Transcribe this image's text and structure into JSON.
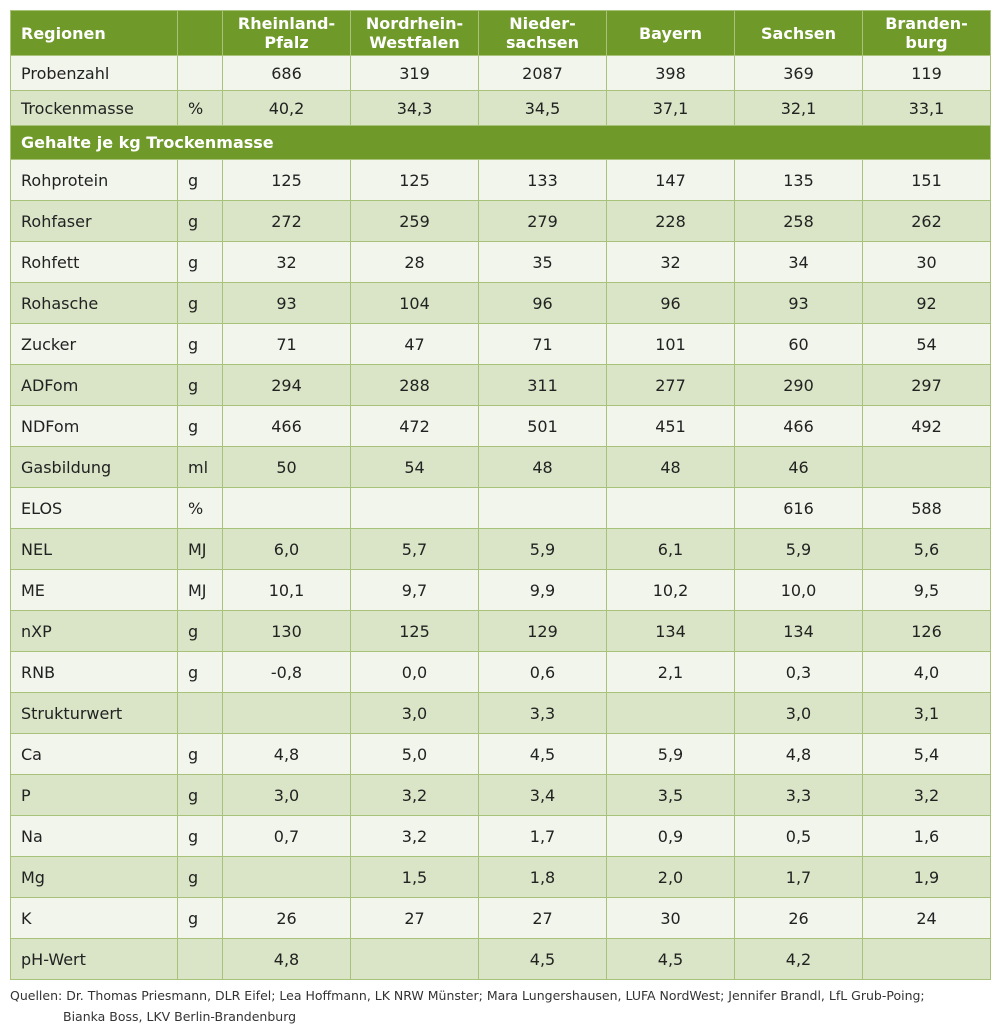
{
  "header": {
    "label": "Regionen",
    "unit": "",
    "regions": [
      "Rheinland-\nPfalz",
      "Nordrhein-\nWestfalen",
      "Nieder-\nsachsen",
      "Bayern",
      "Sachsen",
      "Branden-\nburg"
    ]
  },
  "top_rows": [
    {
      "label": "Probenzahl",
      "unit": "",
      "values": [
        "686",
        "319",
        "2087",
        "398",
        "369",
        "119"
      ]
    },
    {
      "label": "Trockenmasse",
      "unit": "%",
      "values": [
        "40,2",
        "34,3",
        "34,5",
        "37,1",
        "32,1",
        "33,1"
      ]
    }
  ],
  "section_title": "Gehalte je kg Trockenmasse",
  "rows": [
    {
      "label": "Rohprotein",
      "unit": "g",
      "values": [
        "125",
        "125",
        "133",
        "147",
        "135",
        "151"
      ]
    },
    {
      "label": "Rohfaser",
      "unit": "g",
      "values": [
        "272",
        "259",
        "279",
        "228",
        "258",
        "262"
      ]
    },
    {
      "label": "Rohfett",
      "unit": "g",
      "values": [
        "32",
        "28",
        "35",
        "32",
        "34",
        "30"
      ]
    },
    {
      "label": "Rohasche",
      "unit": "g",
      "values": [
        "93",
        "104",
        "96",
        "96",
        "93",
        "92"
      ]
    },
    {
      "label": "Zucker",
      "unit": "g",
      "values": [
        "71",
        "47",
        "71",
        "101",
        "60",
        "54"
      ]
    },
    {
      "label": "ADFom",
      "unit": "g",
      "values": [
        "294",
        "288",
        "311",
        "277",
        "290",
        "297"
      ]
    },
    {
      "label": "NDFom",
      "unit": "g",
      "values": [
        "466",
        "472",
        "501",
        "451",
        "466",
        "492"
      ]
    },
    {
      "label": "Gasbildung",
      "unit": "ml",
      "values": [
        "50",
        "54",
        "48",
        "48",
        "46",
        ""
      ]
    },
    {
      "label": "ELOS",
      "unit": "%",
      "values": [
        "",
        "",
        "",
        "",
        "616",
        "588"
      ]
    },
    {
      "label": "NEL",
      "unit": "MJ",
      "values": [
        "6,0",
        "5,7",
        "5,9",
        "6,1",
        "5,9",
        "5,6"
      ]
    },
    {
      "label": "ME",
      "unit": "MJ",
      "values": [
        "10,1",
        "9,7",
        "9,9",
        "10,2",
        "10,0",
        "9,5"
      ]
    },
    {
      "label": "nXP",
      "unit": "g",
      "values": [
        "130",
        "125",
        "129",
        "134",
        "134",
        "126"
      ]
    },
    {
      "label": "RNB",
      "unit": "g",
      "values": [
        "-0,8",
        "0,0",
        "0,6",
        "2,1",
        "0,3",
        "4,0"
      ]
    },
    {
      "label": "Strukturwert",
      "unit": "",
      "values": [
        "",
        "3,0",
        "3,3",
        "",
        "3,0",
        "3,1"
      ]
    },
    {
      "label": "Ca",
      "unit": "g",
      "values": [
        "4,8",
        "5,0",
        "4,5",
        "5,9",
        "4,8",
        "5,4"
      ]
    },
    {
      "label": "P",
      "unit": "g",
      "values": [
        "3,0",
        "3,2",
        "3,4",
        "3,5",
        "3,3",
        "3,2"
      ]
    },
    {
      "label": "Na",
      "unit": "g",
      "values": [
        "0,7",
        "3,2",
        "1,7",
        "0,9",
        "0,5",
        "1,6"
      ]
    },
    {
      "label": "Mg",
      "unit": "g",
      "values": [
        "",
        "1,5",
        "1,8",
        "2,0",
        "1,7",
        "1,9"
      ]
    },
    {
      "label": "K",
      "unit": "g",
      "values": [
        "26",
        "27",
        "27",
        "30",
        "26",
        "24"
      ]
    },
    {
      "label": "pH-Wert",
      "unit": "",
      "values": [
        "4,8",
        "",
        "4,5",
        "4,5",
        "4,2",
        ""
      ]
    }
  ],
  "footer": {
    "line1": "Quellen: Dr. Thomas Priesmann, DLR Eifel; Lea Hoffmann, LK NRW Münster; Mara Lungershausen, LUFA NordWest; Jennifer Brandl, LfL Grub-Poing;",
    "line2": "Bianka Boss, LKV Berlin-Brandenburg"
  },
  "colors": {
    "header_green": "#6f9a2a",
    "row_light": "#f2f5ec",
    "row_dark": "#d9e5c6",
    "grid": "#a9c27a"
  }
}
